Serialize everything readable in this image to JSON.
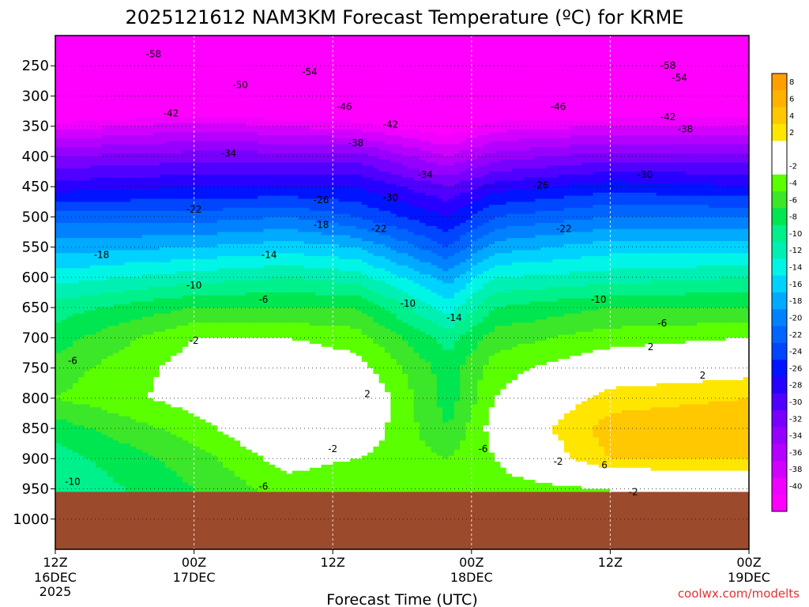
{
  "chart_data": {
    "type": "contour",
    "title": "2025121612 NAM3KM Forecast Temperature (ºC) for KRME",
    "xlabel": "Forecast Time (UTC)",
    "ylabel": "",
    "credit": "coolwx.com/modelts",
    "y_axis": {
      "unit": "hPa",
      "inverted": true,
      "range": [
        200,
        1050
      ],
      "ticks": [
        250,
        300,
        350,
        400,
        450,
        500,
        550,
        600,
        650,
        700,
        750,
        800,
        850,
        900,
        950,
        1000
      ]
    },
    "x_axis": {
      "range_hours": [
        0,
        60
      ],
      "ticks": [
        {
          "hour": 0,
          "line1": "12Z",
          "line2": "16DEC",
          "line3": "2025"
        },
        {
          "hour": 12,
          "line1": "00Z",
          "line2": "17DEC",
          "line3": ""
        },
        {
          "hour": 24,
          "line1": "12Z",
          "line2": "",
          "line3": ""
        },
        {
          "hour": 36,
          "line1": "00Z",
          "line2": "18DEC",
          "line3": ""
        },
        {
          "hour": 48,
          "line1": "12Z",
          "line2": "",
          "line3": ""
        },
        {
          "hour": 60,
          "line1": "00Z",
          "line2": "19DEC",
          "line3": ""
        }
      ]
    },
    "grid": true,
    "ground_level_hPa": 955,
    "ground_color": "#9c4a2c",
    "colorbar": {
      "placement": "right",
      "bins": [
        {
          "label": "8",
          "color": "#ffa000"
        },
        {
          "label": "6",
          "color": "#ffb300"
        },
        {
          "label": "4",
          "color": "#ffc800"
        },
        {
          "label": "2",
          "color": "#ffe600"
        },
        {
          "label": "",
          "color": "#ffffff"
        },
        {
          "label": "-2",
          "color": "#ffffff"
        },
        {
          "label": "-4",
          "color": "#5aff00"
        },
        {
          "label": "-6",
          "color": "#3ce628"
        },
        {
          "label": "-8",
          "color": "#00e650"
        },
        {
          "label": "-10",
          "color": "#00f08c"
        },
        {
          "label": "-12",
          "color": "#00f0b4"
        },
        {
          "label": "-14",
          "color": "#00f5e6"
        },
        {
          "label": "-16",
          "color": "#00d2ff"
        },
        {
          "label": "-18",
          "color": "#00aaff"
        },
        {
          "label": "-20",
          "color": "#0082ff"
        },
        {
          "label": "-22",
          "color": "#0064ff"
        },
        {
          "label": "-24",
          "color": "#0046ff"
        },
        {
          "label": "-26",
          "color": "#0014ff"
        },
        {
          "label": "-28",
          "color": "#2800ff"
        },
        {
          "label": "-30",
          "color": "#5000ff"
        },
        {
          "label": "-32",
          "color": "#7800ff"
        },
        {
          "label": "-34",
          "color": "#9600ff"
        },
        {
          "label": "-36",
          "color": "#b400ff"
        },
        {
          "label": "-38",
          "color": "#d200ff"
        },
        {
          "label": "-40",
          "color": "#f000ff"
        },
        {
          "label": "",
          "color": "#ff00ff"
        }
      ]
    },
    "temperature_profiles": [
      {
        "hour": 0,
        "points": [
          [
            250,
            -56
          ],
          [
            300,
            -47
          ],
          [
            350,
            -39
          ],
          [
            400,
            -32
          ],
          [
            450,
            -27
          ],
          [
            500,
            -21
          ],
          [
            550,
            -17
          ],
          [
            600,
            -13
          ],
          [
            650,
            -9
          ],
          [
            700,
            -7
          ],
          [
            750,
            -5
          ],
          [
            800,
            -4
          ],
          [
            850,
            -7
          ],
          [
            900,
            -9
          ],
          [
            950,
            -10
          ]
        ]
      },
      {
        "hour": 12,
        "points": [
          [
            250,
            -57
          ],
          [
            300,
            -46
          ],
          [
            350,
            -37
          ],
          [
            400,
            -31
          ],
          [
            450,
            -26
          ],
          [
            500,
            -21
          ],
          [
            550,
            -16
          ],
          [
            600,
            -11
          ],
          [
            650,
            -6
          ],
          [
            700,
            -2
          ],
          [
            750,
            -1
          ],
          [
            800,
            -1
          ],
          [
            850,
            -3
          ],
          [
            900,
            -5
          ],
          [
            950,
            -6
          ]
        ]
      },
      {
        "hour": 20,
        "points": [
          [
            250,
            -57
          ],
          [
            300,
            -47
          ],
          [
            350,
            -38
          ],
          [
            400,
            -31
          ],
          [
            450,
            -26
          ],
          [
            500,
            -20
          ],
          [
            550,
            -15
          ],
          [
            600,
            -10
          ],
          [
            650,
            -6
          ],
          [
            700,
            -2
          ],
          [
            750,
            0
          ],
          [
            800,
            2
          ],
          [
            850,
            1
          ],
          [
            900,
            -1
          ],
          [
            950,
            -3
          ]
        ]
      },
      {
        "hour": 26,
        "points": [
          [
            250,
            -57
          ],
          [
            300,
            -46
          ],
          [
            350,
            -39
          ],
          [
            400,
            -31
          ],
          [
            450,
            -26
          ],
          [
            500,
            -22
          ],
          [
            550,
            -16
          ],
          [
            600,
            -11
          ],
          [
            650,
            -6
          ],
          [
            700,
            -3
          ],
          [
            750,
            -1
          ],
          [
            800,
            1
          ],
          [
            850,
            0
          ],
          [
            900,
            -2
          ],
          [
            950,
            -4
          ]
        ]
      },
      {
        "hour": 34,
        "points": [
          [
            250,
            -58
          ],
          [
            300,
            -49
          ],
          [
            350,
            -42
          ],
          [
            400,
            -36
          ],
          [
            450,
            -30
          ],
          [
            500,
            -26
          ],
          [
            550,
            -22
          ],
          [
            600,
            -17
          ],
          [
            650,
            -13
          ],
          [
            700,
            -9
          ],
          [
            750,
            -7
          ],
          [
            800,
            -7
          ],
          [
            850,
            -6
          ],
          [
            900,
            -4
          ],
          [
            950,
            -2
          ]
        ]
      },
      {
        "hour": 38,
        "points": [
          [
            250,
            -55
          ],
          [
            300,
            -46
          ],
          [
            350,
            -39
          ],
          [
            400,
            -33
          ],
          [
            450,
            -27
          ],
          [
            500,
            -22
          ],
          [
            550,
            -17
          ],
          [
            600,
            -12
          ],
          [
            650,
            -8
          ],
          [
            700,
            -5
          ],
          [
            750,
            -3
          ],
          [
            800,
            -2
          ],
          [
            850,
            -1
          ],
          [
            900,
            -2
          ],
          [
            950,
            -3
          ]
        ]
      },
      {
        "hour": 48,
        "points": [
          [
            250,
            -55
          ],
          [
            300,
            -46
          ],
          [
            350,
            -38
          ],
          [
            400,
            -31
          ],
          [
            450,
            -25
          ],
          [
            500,
            -20
          ],
          [
            550,
            -15
          ],
          [
            600,
            -11
          ],
          [
            650,
            -6
          ],
          [
            700,
            -3
          ],
          [
            750,
            0
          ],
          [
            800,
            3
          ],
          [
            850,
            5
          ],
          [
            900,
            4
          ],
          [
            950,
            -2
          ]
        ]
      },
      {
        "hour": 60,
        "points": [
          [
            250,
            -57
          ],
          [
            300,
            -46
          ],
          [
            350,
            -38
          ],
          [
            400,
            -31
          ],
          [
            450,
            -26
          ],
          [
            500,
            -20
          ],
          [
            550,
            -15
          ],
          [
            600,
            -10
          ],
          [
            650,
            -6
          ],
          [
            700,
            -2
          ],
          [
            750,
            1
          ],
          [
            800,
            4
          ],
          [
            850,
            6
          ],
          [
            900,
            4
          ],
          [
            950,
            -1
          ]
        ]
      }
    ],
    "contour_labels": [
      {
        "text": "-58",
        "hour": 8.5,
        "p": 231
      },
      {
        "text": "-54",
        "hour": 22,
        "p": 260
      },
      {
        "text": "-50",
        "hour": 16,
        "p": 282
      },
      {
        "text": "-46",
        "hour": 25,
        "p": 318
      },
      {
        "text": "-42",
        "hour": 10,
        "p": 329
      },
      {
        "text": "-42",
        "hour": 29,
        "p": 347
      },
      {
        "text": "-38",
        "hour": 26,
        "p": 378
      },
      {
        "text": "-34",
        "hour": 15,
        "p": 395
      },
      {
        "text": "-34",
        "hour": 32,
        "p": 430
      },
      {
        "text": "-30",
        "hour": 29,
        "p": 468
      },
      {
        "text": "-26",
        "hour": 23,
        "p": 472
      },
      {
        "text": "-22",
        "hour": 12,
        "p": 488
      },
      {
        "text": "-22",
        "hour": 28,
        "p": 520
      },
      {
        "text": "-18",
        "hour": 23,
        "p": 513
      },
      {
        "text": "-18",
        "hour": 4,
        "p": 563
      },
      {
        "text": "-14",
        "hour": 18.5,
        "p": 563
      },
      {
        "text": "-14",
        "hour": 34.5,
        "p": 667
      },
      {
        "text": "-10",
        "hour": 12,
        "p": 613
      },
      {
        "text": "-10",
        "hour": 30.5,
        "p": 643
      },
      {
        "text": "-6",
        "hour": 18,
        "p": 637
      },
      {
        "text": "-2",
        "hour": 12,
        "p": 705
      },
      {
        "text": "-6",
        "hour": 1.5,
        "p": 738
      },
      {
        "text": "2",
        "hour": 27,
        "p": 793
      },
      {
        "text": "-2",
        "hour": 24,
        "p": 884
      },
      {
        "text": "-6",
        "hour": 18,
        "p": 946
      },
      {
        "text": "-10",
        "hour": 1.5,
        "p": 938
      },
      {
        "text": "-6",
        "hour": 37,
        "p": 884
      },
      {
        "text": "-10",
        "hour": 47,
        "p": 637
      },
      {
        "text": "-6",
        "hour": 52.5,
        "p": 676
      },
      {
        "text": "-26",
        "hour": 42,
        "p": 448
      },
      {
        "text": "-30",
        "hour": 51,
        "p": 430
      },
      {
        "text": "-22",
        "hour": 44,
        "p": 520
      },
      {
        "text": "-46",
        "hour": 43.5,
        "p": 318
      },
      {
        "text": "-42",
        "hour": 53,
        "p": 335
      },
      {
        "text": "-38",
        "hour": 54.5,
        "p": 355
      },
      {
        "text": "-54",
        "hour": 54,
        "p": 270
      },
      {
        "text": "-58",
        "hour": 53,
        "p": 250
      },
      {
        "text": "2",
        "hour": 51.5,
        "p": 715
      },
      {
        "text": "2",
        "hour": 56,
        "p": 762
      },
      {
        "text": "-2",
        "hour": 43.5,
        "p": 905
      },
      {
        "text": "6",
        "hour": 47.5,
        "p": 911
      },
      {
        "text": "-2",
        "hour": 50,
        "p": 955
      }
    ]
  }
}
